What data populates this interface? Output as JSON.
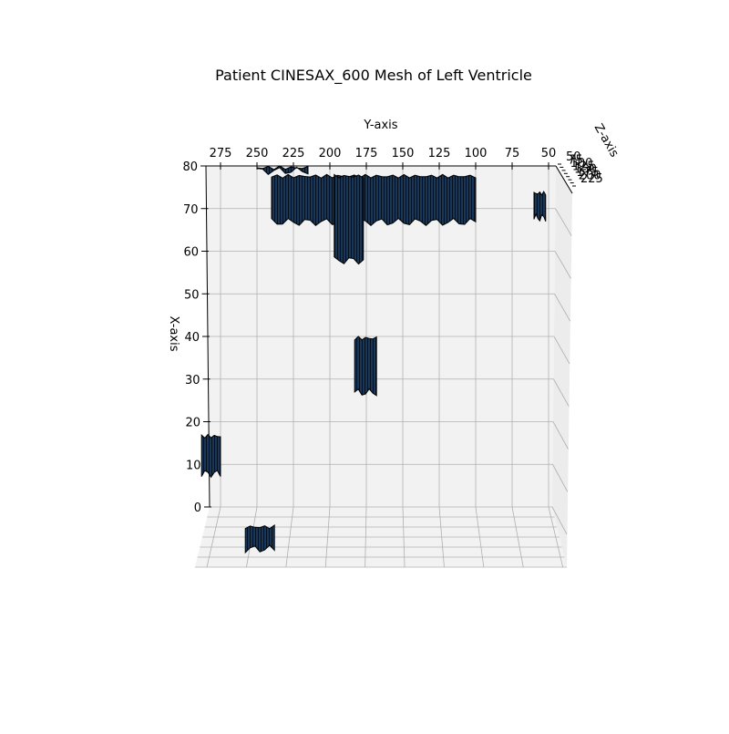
{
  "chart_data": {
    "type": "scatter",
    "projection": "3d-mesh",
    "title": "Patient CINESAX_600 Mesh of Left Ventricle",
    "xlabel": "X-axis",
    "ylabel": "Y-axis",
    "zlabel": "Z-axis",
    "x_ticks": [
      "0",
      "10",
      "20",
      "30",
      "40",
      "50",
      "60",
      "70",
      "80"
    ],
    "y_ticks": [
      "275",
      "250",
      "225",
      "200",
      "175",
      "150",
      "125",
      "100",
      "75",
      "50"
    ],
    "z_ticks": [
      "50",
      "75",
      "100",
      "125",
      "150",
      "175",
      "200",
      "225"
    ],
    "xlim": [
      0,
      80
    ],
    "ylim": [
      285,
      45
    ],
    "zlim": [
      50,
      225
    ],
    "grid": true,
    "colors": {
      "mesh_fill": "#1b3a5c",
      "mesh_edge": "#000000",
      "pane": "#f2f2f2",
      "grid": "#b0b0b0"
    },
    "mesh_regions": [
      {
        "name": "upper-band",
        "y_range": [
          240,
          100
        ],
        "x_range": [
          66,
          78
        ]
      },
      {
        "name": "upper-stem",
        "y_range": [
          197,
          177
        ],
        "x_range": [
          57,
          78
        ]
      },
      {
        "name": "top-left-cap",
        "y_range": [
          250,
          215
        ],
        "x_range": [
          78,
          80
        ]
      },
      {
        "name": "center-blob",
        "y_range": [
          183,
          168
        ],
        "x_range": [
          26,
          40
        ]
      },
      {
        "name": "right-edge-blob",
        "y_range": [
          60,
          52
        ],
        "x_range": [
          67,
          74
        ]
      },
      {
        "name": "left-edge-blob",
        "y_range": [
          288,
          275
        ],
        "x_range": [
          7,
          17
        ]
      },
      {
        "name": "bottom-blob",
        "y_range": [
          258,
          238
        ],
        "x_range": [
          -12,
          -9
        ]
      }
    ]
  }
}
